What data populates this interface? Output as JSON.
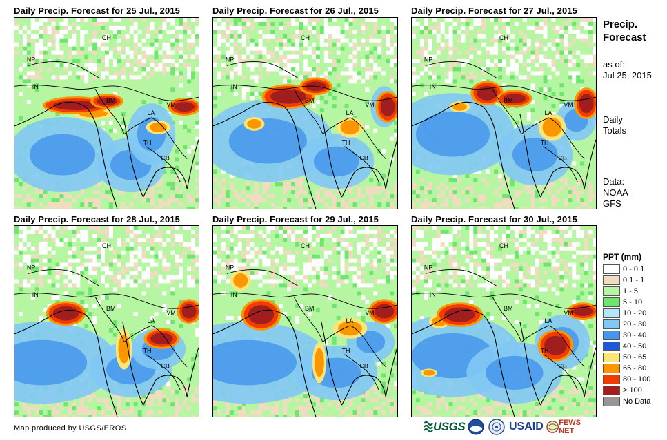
{
  "panels": [
    {
      "title": "Daily Precip. Forecast for 25 Jul., 2015"
    },
    {
      "title": "Daily Precip. Forecast for 26 Jul., 2015"
    },
    {
      "title": "Daily Precip. Forecast for 27 Jul., 2015"
    },
    {
      "title": "Daily Precip. Forecast for 28 Jul., 2015"
    },
    {
      "title": "Daily Precip. Forecast for 29 Jul., 2015"
    },
    {
      "title": "Daily Precip. Forecast for 30 Jul., 2015"
    }
  ],
  "country_labels": {
    "ch": "CH",
    "np": "NP",
    "in": "IN",
    "bm": "BM",
    "la": "LA",
    "vm": "VM",
    "th": "TH",
    "cb": "CB"
  },
  "sidebar": {
    "title_line1": "Precip.",
    "title_line2": "Forecast",
    "asof_line1": "as of:",
    "asof_line2": "Jul 25, 2015",
    "daily_line1": "Daily",
    "daily_line2": "Totals",
    "data_line1": "Data:",
    "data_line2": "NOAA-",
    "data_line3": "GFS"
  },
  "legend": {
    "title": "PPT (mm)",
    "items": [
      {
        "label": "0 - 0.1",
        "color": "#ffffff"
      },
      {
        "label": "0.1 - 1",
        "color": "#f0dcc0"
      },
      {
        "label": "1 - 5",
        "color": "#b6f5a2"
      },
      {
        "label": "5 - 10",
        "color": "#6ee66e"
      },
      {
        "label": "10 - 20",
        "color": "#b4e6fa"
      },
      {
        "label": "20 - 30",
        "color": "#82c8f5"
      },
      {
        "label": "30 - 40",
        "color": "#4696eb"
      },
      {
        "label": "40 - 50",
        "color": "#1e5ad7"
      },
      {
        "label": "50 - 65",
        "color": "#fae678"
      },
      {
        "label": "65 - 80",
        "color": "#fa9600"
      },
      {
        "label": "80 - 100",
        "color": "#f03c00"
      },
      {
        "label": "> 100",
        "color": "#a01e1e"
      },
      {
        "label": "No Data",
        "color": "#969696"
      }
    ]
  },
  "footer": {
    "credit": "Map produced by USGS/EROS",
    "usgs": "USGS",
    "usaid": "USAID",
    "fews": "FEWS NET"
  }
}
